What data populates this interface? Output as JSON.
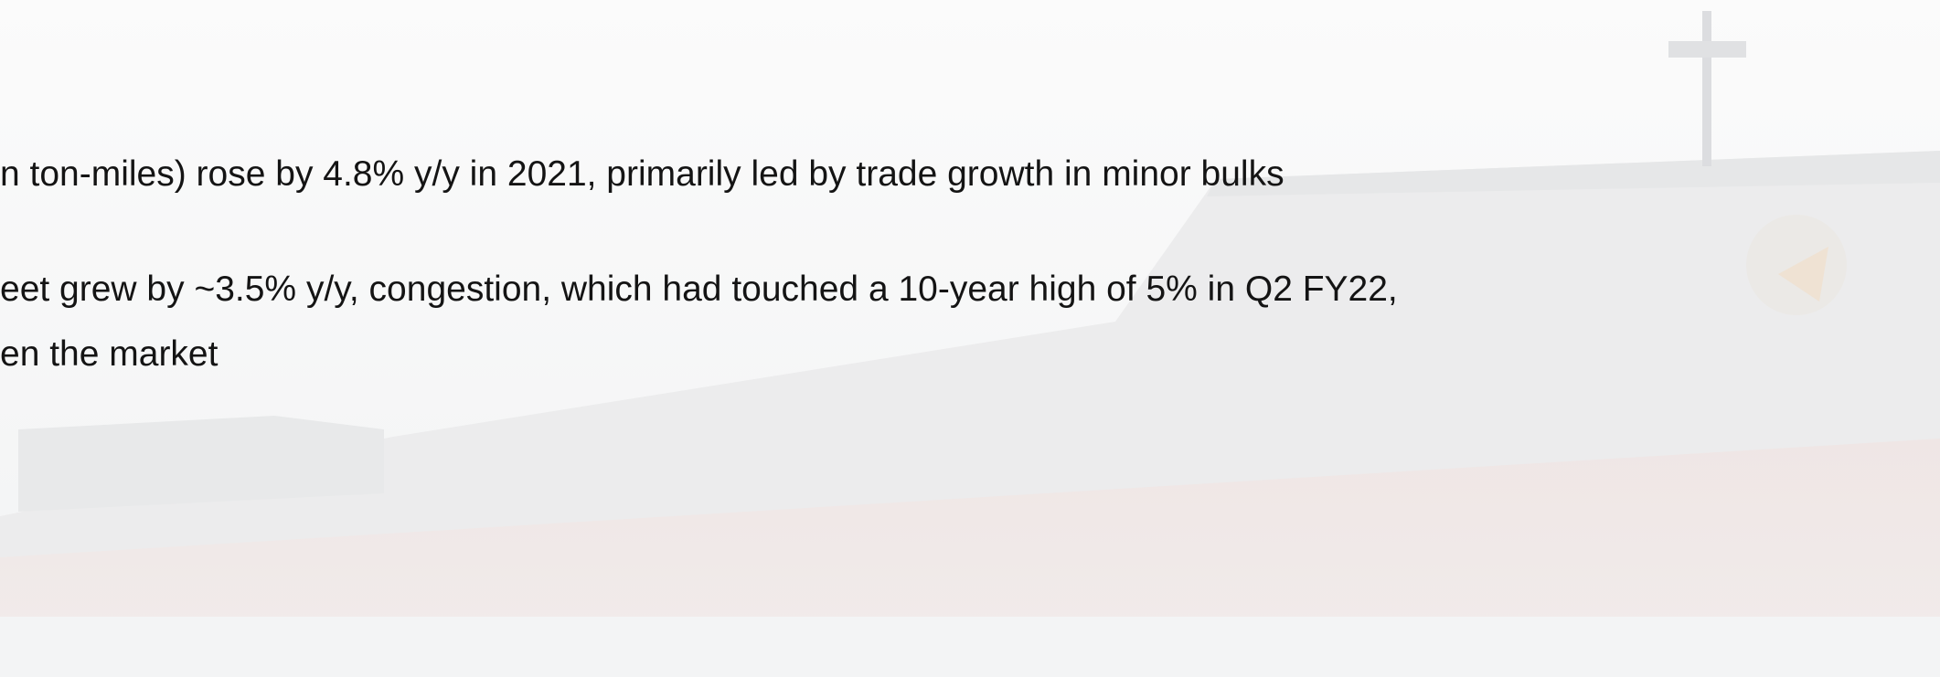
{
  "bullets": [
    {
      "lines": [
        "n ton-miles) rose by 4.8% y/y in 2021, primarily led by trade growth in minor bulks"
      ]
    },
    {
      "lines": [
        "eet grew by ~3.5% y/y, congestion, which had touched a 10-year high of 5% in Q2 FY22,",
        "en the market"
      ]
    }
  ]
}
